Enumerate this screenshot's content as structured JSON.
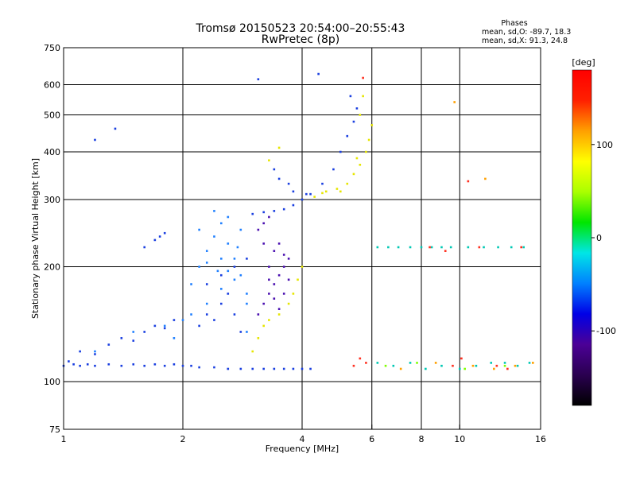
{
  "chart_data": {
    "type": "scatter",
    "title": "Tromsø 20150523 20:54:00–20:55:43",
    "subtitle": "RwPretec (8p)",
    "xlabel": "Frequency [MHz]",
    "ylabel": "Stationary phase Virtual Height [km]",
    "x_scale": "log",
    "y_scale": "log",
    "xlim": [
      1,
      16
    ],
    "ylim": [
      75,
      750
    ],
    "x_ticks": [
      1,
      2,
      4,
      6,
      8,
      10,
      16
    ],
    "x_tick_labels": [
      "1",
      "2",
      "4",
      "6",
      "8",
      "10",
      "16"
    ],
    "y_ticks": [
      75,
      100,
      200,
      300,
      400,
      500,
      600,
      750
    ],
    "y_tick_labels": [
      "75",
      "100",
      "200",
      "300",
      "400",
      "500",
      "600",
      "750"
    ],
    "x_gridlines": [
      2,
      4,
      6,
      8,
      10
    ],
    "y_gridlines": [
      100,
      200,
      300,
      400,
      500,
      600
    ],
    "grid": true,
    "stats": {
      "heading": "Phases",
      "line_o": "mean, sd,O: -89.7, 18.3",
      "line_x": "mean, sd,X:  91.3, 24.8"
    },
    "colorbar": {
      "label": "[deg]",
      "range": [
        -180,
        180
      ],
      "ticks": [
        100,
        0,
        -100
      ],
      "tick_labels": [
        "100",
        "0",
        "-100"
      ],
      "colormap": [
        "#000000",
        "#2a0050",
        "#4b0096",
        "#0000e6",
        "#0080ff",
        "#00e6e6",
        "#00e600",
        "#aaff00",
        "#ffff00",
        "#ffa000",
        "#ff2000",
        "#ff0000"
      ]
    },
    "series": [
      {
        "phase": -95,
        "color": "#1a3fe0",
        "points": [
          [
            1.0,
            110
          ],
          [
            1.03,
            113
          ],
          [
            1.06,
            111
          ],
          [
            1.1,
            110
          ],
          [
            1.15,
            111
          ],
          [
            1.2,
            110
          ],
          [
            1.3,
            111
          ],
          [
            1.4,
            110
          ],
          [
            1.5,
            111
          ],
          [
            1.6,
            110
          ],
          [
            1.7,
            111
          ],
          [
            1.8,
            110
          ],
          [
            1.9,
            111
          ],
          [
            2.0,
            110
          ],
          [
            2.1,
            110
          ],
          [
            2.2,
            109
          ],
          [
            2.4,
            109
          ],
          [
            2.6,
            108
          ],
          [
            2.8,
            108
          ],
          [
            3.0,
            108
          ],
          [
            3.2,
            108
          ],
          [
            3.4,
            108
          ],
          [
            3.6,
            108
          ],
          [
            3.8,
            108
          ],
          [
            4.0,
            108
          ],
          [
            4.2,
            108
          ],
          [
            2.2,
            140
          ],
          [
            2.3,
            150
          ],
          [
            2.4,
            145
          ],
          [
            2.5,
            160
          ],
          [
            2.6,
            170
          ],
          [
            2.7,
            150
          ],
          [
            2.8,
            135
          ],
          [
            2.3,
            180
          ],
          [
            2.5,
            190
          ],
          [
            2.7,
            200
          ],
          [
            2.9,
            210
          ],
          [
            3.0,
            275
          ],
          [
            3.2,
            278
          ],
          [
            3.4,
            280
          ],
          [
            3.6,
            283
          ],
          [
            3.8,
            290
          ],
          [
            4.0,
            300
          ],
          [
            4.2,
            310
          ],
          [
            4.5,
            330
          ],
          [
            4.8,
            360
          ],
          [
            5.0,
            400
          ],
          [
            5.2,
            440
          ],
          [
            5.4,
            480
          ],
          [
            5.5,
            520
          ],
          [
            1.1,
            120
          ],
          [
            1.2,
            118
          ],
          [
            1.3,
            125
          ],
          [
            1.4,
            130
          ],
          [
            1.5,
            128
          ],
          [
            1.6,
            135
          ],
          [
            1.7,
            140
          ],
          [
            1.8,
            138
          ],
          [
            1.9,
            145
          ],
          [
            1.7,
            235
          ],
          [
            1.75,
            240
          ],
          [
            1.8,
            245
          ],
          [
            1.6,
            225
          ],
          [
            3.5,
            340
          ],
          [
            3.7,
            330
          ],
          [
            3.4,
            360
          ],
          [
            3.8,
            315
          ],
          [
            4.1,
            310
          ],
          [
            4.4,
            640
          ],
          [
            1.2,
            430
          ],
          [
            1.35,
            460
          ],
          [
            3.1,
            620
          ],
          [
            5.3,
            560
          ]
        ]
      },
      {
        "phase": -60,
        "color": "#2080ff",
        "points": [
          [
            2.1,
            180
          ],
          [
            2.2,
            200
          ],
          [
            2.3,
            220
          ],
          [
            2.4,
            240
          ],
          [
            2.5,
            260
          ],
          [
            2.6,
            230
          ],
          [
            2.7,
            210
          ],
          [
            2.8,
            190
          ],
          [
            2.9,
            170
          ],
          [
            2.2,
            250
          ],
          [
            2.4,
            280
          ],
          [
            2.6,
            270
          ],
          [
            2.8,
            250
          ],
          [
            2.3,
            160
          ],
          [
            2.5,
            175
          ],
          [
            2.7,
            185
          ],
          [
            2.9,
            160
          ],
          [
            2.1,
            150
          ],
          [
            2.9,
            135
          ],
          [
            1.2,
            120
          ],
          [
            1.5,
            135
          ],
          [
            1.8,
            140
          ],
          [
            2.0,
            145
          ],
          [
            1.9,
            130
          ],
          [
            2.5,
            210
          ],
          [
            2.6,
            195
          ],
          [
            2.3,
            205
          ],
          [
            2.75,
            225
          ],
          [
            2.45,
            195
          ]
        ]
      },
      {
        "phase": -110,
        "color": "#4a10b0",
        "points": [
          [
            3.1,
            150
          ],
          [
            3.2,
            160
          ],
          [
            3.3,
            170
          ],
          [
            3.4,
            180
          ],
          [
            3.5,
            190
          ],
          [
            3.6,
            200
          ],
          [
            3.7,
            185
          ],
          [
            3.3,
            200
          ],
          [
            3.4,
            220
          ],
          [
            3.5,
            230
          ],
          [
            3.6,
            215
          ],
          [
            3.2,
            230
          ],
          [
            3.1,
            250
          ],
          [
            3.2,
            260
          ],
          [
            3.3,
            270
          ],
          [
            3.4,
            165
          ],
          [
            3.6,
            170
          ],
          [
            3.5,
            155
          ],
          [
            3.7,
            210
          ],
          [
            3.3,
            185
          ]
        ]
      },
      {
        "phase": 95,
        "color": "#e6e600",
        "points": [
          [
            4.3,
            305
          ],
          [
            4.6,
            315
          ],
          [
            4.9,
            320
          ],
          [
            5.2,
            330
          ],
          [
            5.4,
            350
          ],
          [
            5.6,
            370
          ],
          [
            5.8,
            400
          ],
          [
            5.9,
            430
          ],
          [
            6.0,
            470
          ],
          [
            5.6,
            500
          ],
          [
            5.7,
            560
          ],
          [
            3.2,
            140
          ],
          [
            3.3,
            145
          ],
          [
            3.5,
            150
          ],
          [
            3.7,
            160
          ],
          [
            3.8,
            170
          ],
          [
            3.9,
            185
          ],
          [
            4.0,
            200
          ],
          [
            3.1,
            130
          ],
          [
            3.0,
            120
          ],
          [
            5.0,
            315
          ],
          [
            5.5,
            385
          ],
          [
            3.3,
            380
          ],
          [
            3.5,
            410
          ],
          [
            4.5,
            312
          ]
        ]
      },
      {
        "phase": 10,
        "color": "#00c8b4",
        "points": [
          [
            6.2,
            225
          ],
          [
            6.6,
            225
          ],
          [
            7.0,
            225
          ],
          [
            7.5,
            225
          ],
          [
            8.0,
            225
          ],
          [
            8.5,
            225
          ],
          [
            9.0,
            225
          ],
          [
            9.5,
            225
          ],
          [
            10.5,
            225
          ],
          [
            11.5,
            225
          ],
          [
            12.5,
            225
          ],
          [
            13.5,
            225
          ],
          [
            14.5,
            225
          ],
          [
            6.2,
            112
          ],
          [
            6.8,
            110
          ],
          [
            7.5,
            112
          ],
          [
            8.2,
            108
          ],
          [
            9.0,
            110
          ],
          [
            10.0,
            108
          ],
          [
            11.0,
            110
          ],
          [
            12.0,
            112
          ],
          [
            13.0,
            112
          ],
          [
            14.0,
            110
          ],
          [
            15.0,
            112
          ]
        ]
      },
      {
        "phase": 150,
        "color": "#ff3020",
        "points": [
          [
            5.4,
            110
          ],
          [
            5.6,
            115
          ],
          [
            5.8,
            112
          ],
          [
            8.4,
            225
          ],
          [
            9.6,
            110
          ],
          [
            10.1,
            115
          ],
          [
            10.5,
            335
          ],
          [
            11.2,
            225
          ],
          [
            12.4,
            110
          ],
          [
            14.3,
            225
          ],
          [
            5.7,
            625
          ],
          [
            9.2,
            220
          ],
          [
            13.2,
            108
          ]
        ]
      },
      {
        "phase": 60,
        "color": "#ffa000",
        "points": [
          [
            7.1,
            108
          ],
          [
            8.7,
            112
          ],
          [
            10.8,
            110
          ],
          [
            12.2,
            108
          ],
          [
            13.8,
            110
          ],
          [
            15.3,
            112
          ],
          [
            9.7,
            540
          ],
          [
            11.6,
            340
          ]
        ]
      },
      {
        "phase": 40,
        "color": "#80ff00",
        "points": [
          [
            6.5,
            110
          ],
          [
            7.8,
            112
          ],
          [
            10.3,
            108
          ],
          [
            13.0,
            110
          ]
        ]
      }
    ]
  }
}
